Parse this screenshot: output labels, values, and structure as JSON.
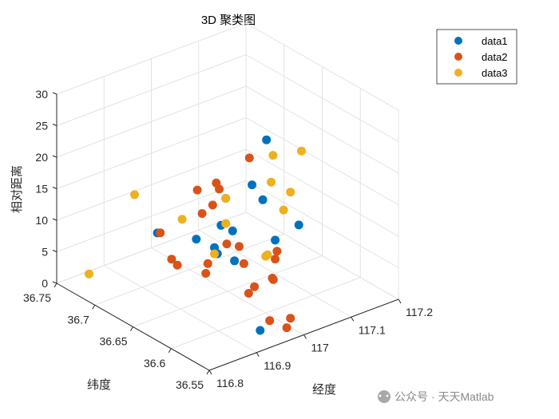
{
  "chart_data": {
    "type": "scatter3d",
    "title": "3D 聚类图",
    "xlabel": "经度",
    "ylabel": "纬度",
    "zlabel": "相对距离",
    "xlim": [
      116.8,
      117.2
    ],
    "ylim": [
      36.55,
      36.75
    ],
    "zlim": [
      0,
      30
    ],
    "x_ticks": [
      "116.8",
      "116.9",
      "117",
      "117.1",
      "117.2"
    ],
    "y_ticks": [
      "36.55",
      "36.6",
      "36.65",
      "36.7",
      "36.75"
    ],
    "z_ticks": [
      "0",
      "5",
      "10",
      "15",
      "20",
      "25",
      "30"
    ],
    "grid": true,
    "legend_position": "top-right",
    "series": [
      {
        "name": "data1",
        "color": "#0072BD",
        "points": [
          [
            117.05,
            36.63,
            24
          ],
          [
            116.93,
            36.6,
            15
          ],
          [
            116.98,
            36.64,
            16
          ],
          [
            116.93,
            36.62,
            10
          ],
          [
            117.07,
            36.6,
            12
          ],
          [
            116.94,
            36.57,
            1
          ],
          [
            116.9,
            36.68,
            10
          ],
          [
            117.02,
            36.6,
            11
          ],
          [
            116.95,
            36.66,
            9
          ],
          [
            117.1,
            36.68,
            12
          ],
          [
            116.94,
            36.63,
            10
          ],
          [
            116.97,
            36.64,
            12
          ],
          [
            116.95,
            36.61,
            9
          ],
          [
            117.01,
            36.61,
            17
          ]
        ]
      },
      {
        "name": "data2",
        "color": "#D95319",
        "points": [
          [
            117.03,
            36.64,
            21
          ],
          [
            116.92,
            36.64,
            19
          ],
          [
            116.96,
            36.64,
            19
          ],
          [
            116.95,
            36.63,
            19
          ],
          [
            116.92,
            36.62,
            18
          ],
          [
            116.93,
            36.64,
            15
          ],
          [
            116.95,
            36.62,
            11
          ],
          [
            116.96,
            36.61,
            11
          ],
          [
            116.89,
            36.67,
            11
          ],
          [
            116.91,
            36.62,
            9
          ],
          [
            116.97,
            36.61,
            8
          ],
          [
            116.93,
            36.68,
            5
          ],
          [
            116.97,
            36.66,
            3
          ],
          [
            117.02,
            36.6,
            8
          ],
          [
            116.98,
            36.61,
            3
          ],
          [
            117.04,
            36.61,
            8
          ],
          [
            116.96,
            36.57,
            2
          ],
          [
            116.96,
            36.59,
            6
          ],
          [
            116.98,
            36.56,
            1
          ],
          [
            117.02,
            36.58,
            0
          ],
          [
            117.0,
            36.59,
            6
          ],
          [
            116.91,
            36.66,
            6
          ],
          [
            117.03,
            36.61,
            4
          ]
        ]
      },
      {
        "name": "data3",
        "color": "#EDB120",
        "points": [
          [
            116.98,
            36.64,
            16
          ],
          [
            116.9,
            36.71,
            14
          ],
          [
            116.82,
            36.72,
            3
          ],
          [
            116.92,
            36.66,
            13
          ],
          [
            117.02,
            36.58,
            20
          ],
          [
            117.08,
            36.64,
            20
          ],
          [
            117.06,
            36.63,
            17
          ],
          [
            117.14,
            36.64,
            19
          ],
          [
            117.07,
            36.62,
            13
          ],
          [
            116.94,
            36.63,
            9
          ],
          [
            116.98,
            36.64,
            12
          ],
          [
            117.0,
            36.6,
            9
          ],
          [
            117.02,
            36.61,
            8
          ]
        ]
      }
    ]
  },
  "watermark": "公众号 · 天天Matlab"
}
